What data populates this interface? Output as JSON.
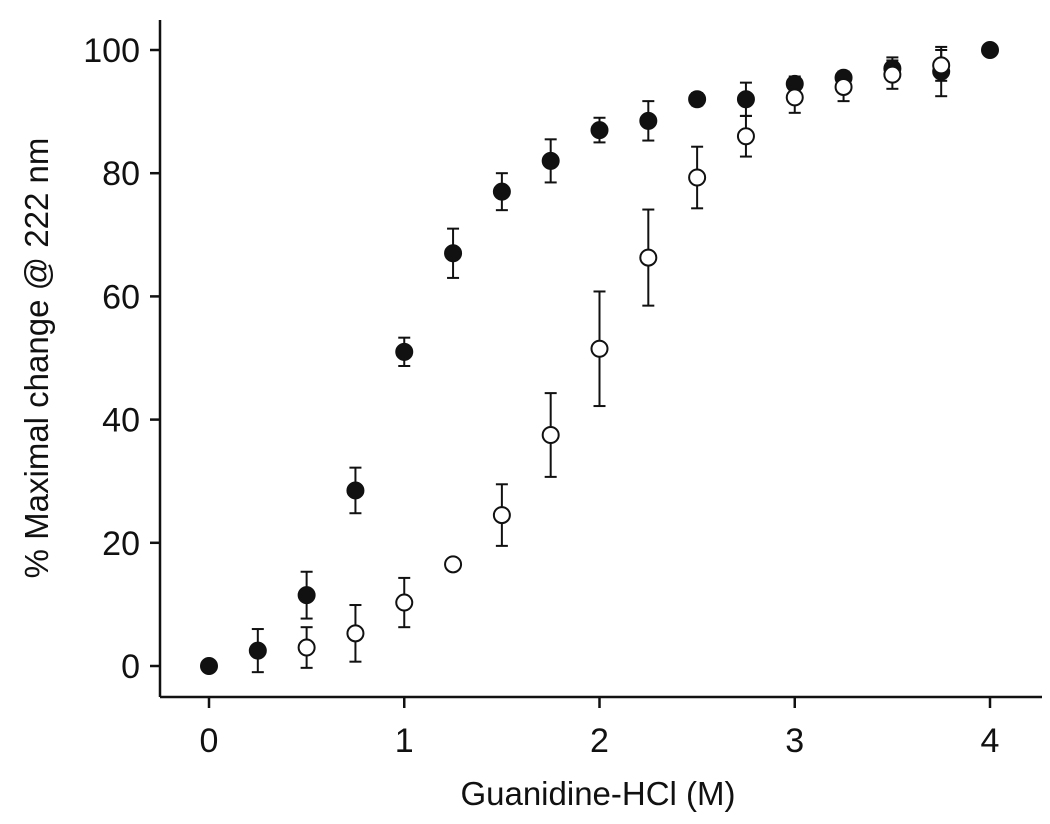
{
  "chart_data": {
    "type": "scatter",
    "title": "",
    "xlabel": "Guanidine-HCl (M)",
    "ylabel": "% Maximal change @ 222 nm",
    "xlim": [
      -0.25,
      4.25
    ],
    "ylim": [
      -5,
      105
    ],
    "x_ticks": [
      0,
      1,
      2,
      3,
      4
    ],
    "y_ticks": [
      0,
      20,
      40,
      60,
      80,
      100
    ],
    "grid": false,
    "legend": "none",
    "series": [
      {
        "marker": "filled-circle",
        "color": "#111111",
        "points": [
          {
            "x": 0,
            "y": 0,
            "err": 0
          },
          {
            "x": 0.25,
            "y": 2.5,
            "err": 3.5
          },
          {
            "x": 0.5,
            "y": 11.5,
            "err": 3.8
          },
          {
            "x": 0.75,
            "y": 28.5,
            "err": 3.7
          },
          {
            "x": 1.0,
            "y": 51,
            "err": 2.3
          },
          {
            "x": 1.25,
            "y": 67,
            "err": 4
          },
          {
            "x": 1.5,
            "y": 77,
            "err": 3
          },
          {
            "x": 1.75,
            "y": 82,
            "err": 3.5
          },
          {
            "x": 2.0,
            "y": 87,
            "err": 2
          },
          {
            "x": 2.25,
            "y": 88.5,
            "err": 3.2
          },
          {
            "x": 2.5,
            "y": 92,
            "err": 1
          },
          {
            "x": 2.75,
            "y": 92,
            "err": 2.7
          },
          {
            "x": 3.0,
            "y": 94.5,
            "err": 1.2
          },
          {
            "x": 3.25,
            "y": 95.5,
            "err": 1
          },
          {
            "x": 3.5,
            "y": 97,
            "err": 1.8
          },
          {
            "x": 3.75,
            "y": 96.5,
            "err": 4
          },
          {
            "x": 4.0,
            "y": 100,
            "err": 0
          }
        ]
      },
      {
        "marker": "open-circle",
        "color": "#111111",
        "points": [
          {
            "x": 0.5,
            "y": 3,
            "err": 3.3
          },
          {
            "x": 0.75,
            "y": 5.3,
            "err": 4.6
          },
          {
            "x": 1.0,
            "y": 10.3,
            "err": 4
          },
          {
            "x": 1.25,
            "y": 16.5,
            "err": 0.8
          },
          {
            "x": 1.5,
            "y": 24.5,
            "err": 5
          },
          {
            "x": 1.75,
            "y": 37.5,
            "err": 6.8
          },
          {
            "x": 2.0,
            "y": 51.5,
            "err": 9.3
          },
          {
            "x": 2.25,
            "y": 66.3,
            "err": 7.8
          },
          {
            "x": 2.5,
            "y": 79.3,
            "err": 5
          },
          {
            "x": 2.75,
            "y": 86,
            "err": 3.3
          },
          {
            "x": 3.0,
            "y": 92.3,
            "err": 2.5
          },
          {
            "x": 3.25,
            "y": 94,
            "err": 2.3
          },
          {
            "x": 3.5,
            "y": 96,
            "err": 2.3
          },
          {
            "x": 3.75,
            "y": 97.5,
            "err": 2.5
          }
        ]
      }
    ]
  }
}
